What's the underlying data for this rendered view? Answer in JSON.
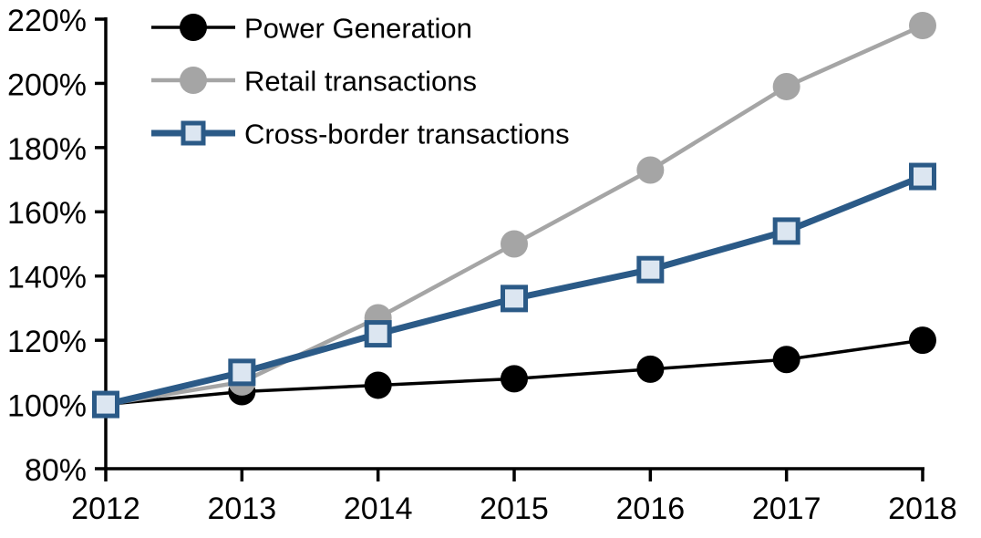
{
  "chart_data": {
    "type": "line",
    "title": "",
    "xlabel": "",
    "ylabel": "",
    "categories": [
      "2012",
      "2013",
      "2014",
      "2015",
      "2016",
      "2017",
      "2018"
    ],
    "series": [
      {
        "name": "Power Generation",
        "values": [
          100,
          104,
          106,
          108,
          111,
          114,
          120
        ],
        "color": "#000000",
        "marker": "circle",
        "marker_fill": "#000000"
      },
      {
        "name": "Retail transactions",
        "values": [
          100,
          107,
          127,
          150,
          173,
          199,
          218
        ],
        "color": "#a5a5a5",
        "marker": "circle",
        "marker_fill": "#a5a5a5"
      },
      {
        "name": "Cross-border transactions",
        "values": [
          100,
          110,
          122,
          133,
          142,
          154,
          171
        ],
        "color": "#2b5a87",
        "marker": "square",
        "marker_fill": "#dce6f1"
      }
    ],
    "ylim": [
      80,
      220
    ],
    "y_ticks": [
      {
        "value": 80,
        "label": "80%"
      },
      {
        "value": 100,
        "label": "100%"
      },
      {
        "value": 120,
        "label": "120%"
      },
      {
        "value": 140,
        "label": "140%"
      },
      {
        "value": 160,
        "label": "160%"
      },
      {
        "value": 180,
        "label": "180%"
      },
      {
        "value": 200,
        "label": "200%"
      },
      {
        "value": 220,
        "label": "220%"
      }
    ],
    "grid": false,
    "legend_position": "top-left",
    "axis_color": "#000000",
    "background": "#ffffff"
  }
}
